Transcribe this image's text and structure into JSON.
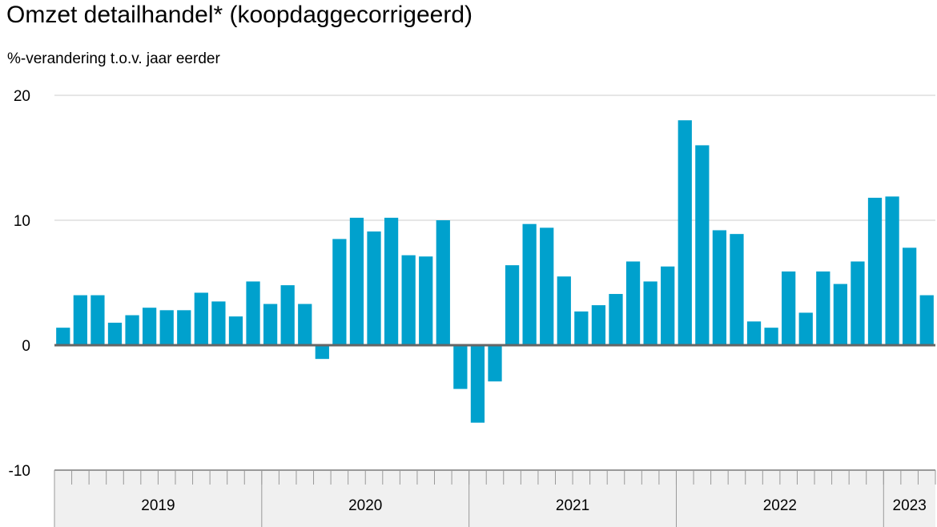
{
  "title": "Omzet detailhandel* (koopdaggecorrigeerd)",
  "subtitle": "%-verandering t.o.v. jaar eerder",
  "colors": {
    "bar": "#00a1cd",
    "grid": "#cccccc",
    "zero_line": "#666666",
    "axis_band": "#f0f0f0",
    "axis_line": "#999999"
  },
  "chart_data": {
    "type": "bar",
    "ylabel": "%-verandering t.o.v. jaar eerder",
    "ylim": [
      -10,
      20
    ],
    "yticks": [
      -10,
      0,
      10,
      20
    ],
    "grid": true,
    "years": [
      {
        "label": "2019",
        "months": 12
      },
      {
        "label": "2020",
        "months": 12
      },
      {
        "label": "2021",
        "months": 12
      },
      {
        "label": "2022",
        "months": 12
      },
      {
        "label": "2023",
        "months": 3
      }
    ],
    "categories": [
      "2019-01",
      "2019-02",
      "2019-03",
      "2019-04",
      "2019-05",
      "2019-06",
      "2019-07",
      "2019-08",
      "2019-09",
      "2019-10",
      "2019-11",
      "2019-12",
      "2020-01",
      "2020-02",
      "2020-03",
      "2020-04",
      "2020-05",
      "2020-06",
      "2020-07",
      "2020-08",
      "2020-09",
      "2020-10",
      "2020-11",
      "2020-12",
      "2021-01",
      "2021-02",
      "2021-03",
      "2021-04",
      "2021-05",
      "2021-06",
      "2021-07",
      "2021-08",
      "2021-09",
      "2021-10",
      "2021-11",
      "2021-12",
      "2022-01",
      "2022-02",
      "2022-03",
      "2022-04",
      "2022-05",
      "2022-06",
      "2022-07",
      "2022-08",
      "2022-09",
      "2022-10",
      "2022-11",
      "2022-12",
      "2023-01",
      "2023-02",
      "2023-03"
    ],
    "values": [
      1.4,
      4.0,
      4.0,
      1.8,
      2.4,
      3.0,
      2.8,
      2.8,
      4.2,
      3.5,
      2.3,
      5.1,
      3.3,
      4.8,
      3.3,
      -1.1,
      8.5,
      10.2,
      9.1,
      10.2,
      7.2,
      7.1,
      10.0,
      -3.5,
      -6.2,
      -2.9,
      6.4,
      9.7,
      9.4,
      5.5,
      2.7,
      3.2,
      4.1,
      6.7,
      5.1,
      6.3,
      18.0,
      16.0,
      9.2,
      8.9,
      1.9,
      1.4,
      5.9,
      2.6,
      5.9,
      4.9,
      6.7,
      11.8,
      11.9,
      7.8,
      4.0
    ]
  }
}
